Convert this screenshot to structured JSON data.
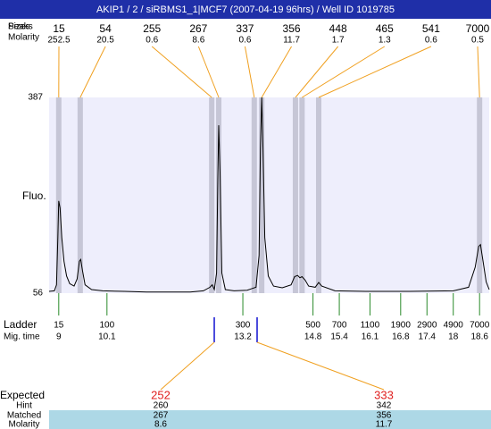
{
  "chart_data": {
    "type": "electropherogram",
    "title": "AKIP1 / 2 / siRBMS1_1|MCF7 (2007-04-19 96hrs) / Well ID 1019785",
    "ylabel": "Fluo.",
    "ylim": [
      56,
      387
    ],
    "yticks": [
      56,
      387
    ],
    "xlim": [
      8.78,
      18.82
    ],
    "trace": {
      "color": "#000000",
      "x": [
        8.78,
        8.9,
        8.95,
        8.98,
        9.0,
        9.03,
        9.07,
        9.12,
        9.18,
        9.25,
        9.35,
        9.42,
        9.47,
        9.5,
        9.54,
        9.6,
        9.75,
        10.0,
        10.5,
        11.0,
        11.5,
        12.0,
        12.3,
        12.45,
        12.5,
        12.55,
        12.6,
        12.63,
        12.65,
        12.68,
        12.72,
        12.8,
        13.0,
        13.3,
        13.42,
        13.5,
        13.57,
        13.6,
        13.63,
        13.66,
        13.7,
        13.78,
        13.9,
        14.1,
        14.3,
        14.38,
        14.45,
        14.5,
        14.55,
        14.62,
        14.7,
        14.85,
        14.93,
        15.0,
        15.3,
        16.0,
        17.0,
        18.0,
        18.35,
        18.5,
        18.58,
        18.62,
        18.68,
        18.75,
        18.82
      ],
      "values": [
        59,
        60,
        70,
        150,
        212,
        200,
        150,
        110,
        85,
        72,
        68,
        80,
        110,
        113,
        95,
        70,
        62,
        60,
        59,
        58,
        58,
        58,
        60,
        66,
        70,
        62,
        90,
        250,
        340,
        260,
        90,
        62,
        60,
        61,
        64,
        66,
        120,
        300,
        387,
        300,
        150,
        85,
        68,
        65,
        70,
        84,
        86,
        82,
        84,
        78,
        68,
        66,
        74,
        68,
        60,
        59,
        59,
        60,
        66,
        100,
        135,
        138,
        110,
        75,
        62
      ]
    },
    "peaks": {
      "row_labels": [
        "Sizes",
        "Peaks"
      ],
      "molarity_label": "Molarity",
      "sizes": [
        15,
        54,
        255,
        267,
        337,
        356,
        448,
        465,
        541,
        7000
      ],
      "molarity": [
        252.5,
        20.5,
        0.6,
        8.6,
        0.6,
        11.7,
        1.7,
        1.3,
        0.6,
        0.5
      ],
      "x": [
        9.0,
        9.49,
        12.49,
        12.65,
        13.46,
        13.63,
        14.4,
        14.55,
        14.93,
        18.6
      ]
    },
    "ladder": {
      "label": "Ladder",
      "time_label": "Mig. time",
      "sizes": [
        15,
        100,
        300,
        500,
        700,
        1100,
        1900,
        2900,
        4900,
        7000
      ],
      "x": [
        9,
        10.1,
        13.2,
        14.8,
        15.4,
        16.1,
        16.8,
        17.4,
        18,
        18.6
      ]
    },
    "expected": {
      "label": "Expected",
      "hint_label": "Hint",
      "matched_label": "Matched",
      "molarity_label": "Molarity",
      "values": [
        252,
        333
      ],
      "hint": [
        260,
        342
      ],
      "matched": [
        267,
        356
      ],
      "molarity": [
        8.6,
        11.7
      ]
    }
  }
}
